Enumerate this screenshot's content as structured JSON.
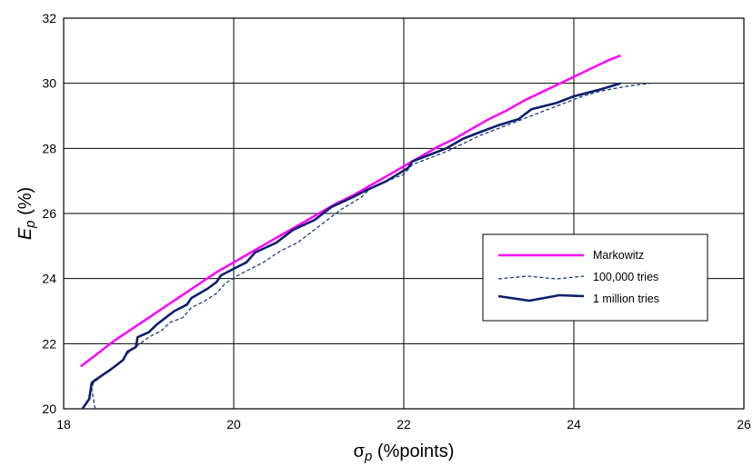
{
  "chart_data": {
    "type": "line",
    "xlabel": {
      "symbol": "σ",
      "subscript": "p",
      "rest": " (%points)"
    },
    "ylabel": {
      "symbol": "E",
      "subscript": "p",
      "rest": " (%)"
    },
    "xlim": [
      18,
      26
    ],
    "ylim": [
      20,
      32
    ],
    "x_ticks": [
      "18",
      "20",
      "22",
      "24",
      "26"
    ],
    "y_ticks": [
      "20",
      "22",
      "24",
      "26",
      "28",
      "30",
      "32"
    ],
    "grid": true,
    "legend_position": "right",
    "series": [
      {
        "name": "Markowitz",
        "color": "#ff00ff",
        "style": "solid",
        "points": [
          [
            18.2,
            21.3
          ],
          [
            18.4,
            21.7
          ],
          [
            18.6,
            22.1
          ],
          [
            18.8,
            22.45
          ],
          [
            19.0,
            22.8
          ],
          [
            19.2,
            23.15
          ],
          [
            19.4,
            23.5
          ],
          [
            19.6,
            23.85
          ],
          [
            19.8,
            24.2
          ],
          [
            20.0,
            24.5
          ],
          [
            20.2,
            24.8
          ],
          [
            20.4,
            25.1
          ],
          [
            20.6,
            25.4
          ],
          [
            20.8,
            25.7
          ],
          [
            21.0,
            26.0
          ],
          [
            21.2,
            26.3
          ],
          [
            21.4,
            26.55
          ],
          [
            21.6,
            26.85
          ],
          [
            21.8,
            27.15
          ],
          [
            22.0,
            27.45
          ],
          [
            22.2,
            27.75
          ],
          [
            22.4,
            28.05
          ],
          [
            22.6,
            28.3
          ],
          [
            22.8,
            28.6
          ],
          [
            23.0,
            28.9
          ],
          [
            23.2,
            29.15
          ],
          [
            23.4,
            29.45
          ],
          [
            23.6,
            29.7
          ],
          [
            23.8,
            29.95
          ],
          [
            24.0,
            30.2
          ],
          [
            24.2,
            30.45
          ],
          [
            24.4,
            30.7
          ],
          [
            24.55,
            30.85
          ]
        ]
      },
      {
        "name": "100,000 tries",
        "color": "#1f3a7a",
        "style": "dashed",
        "points": [
          [
            18.37,
            20.0
          ],
          [
            18.33,
            20.6
          ],
          [
            18.35,
            20.8
          ],
          [
            18.5,
            21.1
          ],
          [
            18.65,
            21.4
          ],
          [
            18.75,
            21.7
          ],
          [
            18.85,
            21.9
          ],
          [
            19.0,
            22.2
          ],
          [
            19.15,
            22.4
          ],
          [
            19.25,
            22.65
          ],
          [
            19.4,
            22.8
          ],
          [
            19.5,
            23.1
          ],
          [
            19.65,
            23.3
          ],
          [
            19.8,
            23.55
          ],
          [
            19.9,
            23.85
          ],
          [
            20.05,
            24.1
          ],
          [
            20.2,
            24.3
          ],
          [
            20.35,
            24.5
          ],
          [
            20.55,
            24.85
          ],
          [
            20.75,
            25.1
          ],
          [
            20.95,
            25.5
          ],
          [
            21.1,
            25.8
          ],
          [
            21.25,
            26.1
          ],
          [
            21.5,
            26.5
          ],
          [
            21.6,
            26.75
          ],
          [
            21.8,
            27.0
          ],
          [
            22.0,
            27.2
          ],
          [
            22.1,
            27.5
          ],
          [
            22.3,
            27.7
          ],
          [
            22.5,
            27.9
          ],
          [
            22.7,
            28.15
          ],
          [
            22.9,
            28.4
          ],
          [
            23.1,
            28.6
          ],
          [
            23.3,
            28.8
          ],
          [
            23.5,
            29.0
          ],
          [
            23.7,
            29.2
          ],
          [
            23.9,
            29.4
          ],
          [
            24.1,
            29.6
          ],
          [
            24.3,
            29.75
          ],
          [
            24.6,
            29.9
          ],
          [
            24.9,
            30.0
          ]
        ]
      },
      {
        "name": "1 million tries",
        "color": "#0d1f6e",
        "style": "solid",
        "points": [
          [
            18.22,
            20.0
          ],
          [
            18.3,
            20.3
          ],
          [
            18.33,
            20.8
          ],
          [
            18.38,
            20.9
          ],
          [
            18.55,
            21.2
          ],
          [
            18.7,
            21.5
          ],
          [
            18.75,
            21.75
          ],
          [
            18.85,
            21.9
          ],
          [
            18.87,
            22.2
          ],
          [
            19.0,
            22.35
          ],
          [
            19.1,
            22.6
          ],
          [
            19.3,
            23.0
          ],
          [
            19.45,
            23.2
          ],
          [
            19.5,
            23.4
          ],
          [
            19.7,
            23.7
          ],
          [
            19.8,
            23.9
          ],
          [
            19.85,
            24.1
          ],
          [
            20.0,
            24.3
          ],
          [
            20.15,
            24.5
          ],
          [
            20.25,
            24.8
          ],
          [
            20.5,
            25.1
          ],
          [
            20.7,
            25.5
          ],
          [
            20.95,
            25.8
          ],
          [
            21.15,
            26.2
          ],
          [
            21.4,
            26.5
          ],
          [
            21.55,
            26.7
          ],
          [
            21.8,
            27.0
          ],
          [
            22.05,
            27.4
          ],
          [
            22.1,
            27.6
          ],
          [
            22.3,
            27.8
          ],
          [
            22.5,
            28.0
          ],
          [
            22.7,
            28.3
          ],
          [
            22.9,
            28.5
          ],
          [
            23.1,
            28.7
          ],
          [
            23.35,
            28.9
          ],
          [
            23.5,
            29.2
          ],
          [
            23.8,
            29.4
          ],
          [
            24.0,
            29.6
          ],
          [
            24.3,
            29.8
          ],
          [
            24.55,
            30.0
          ]
        ]
      }
    ]
  }
}
